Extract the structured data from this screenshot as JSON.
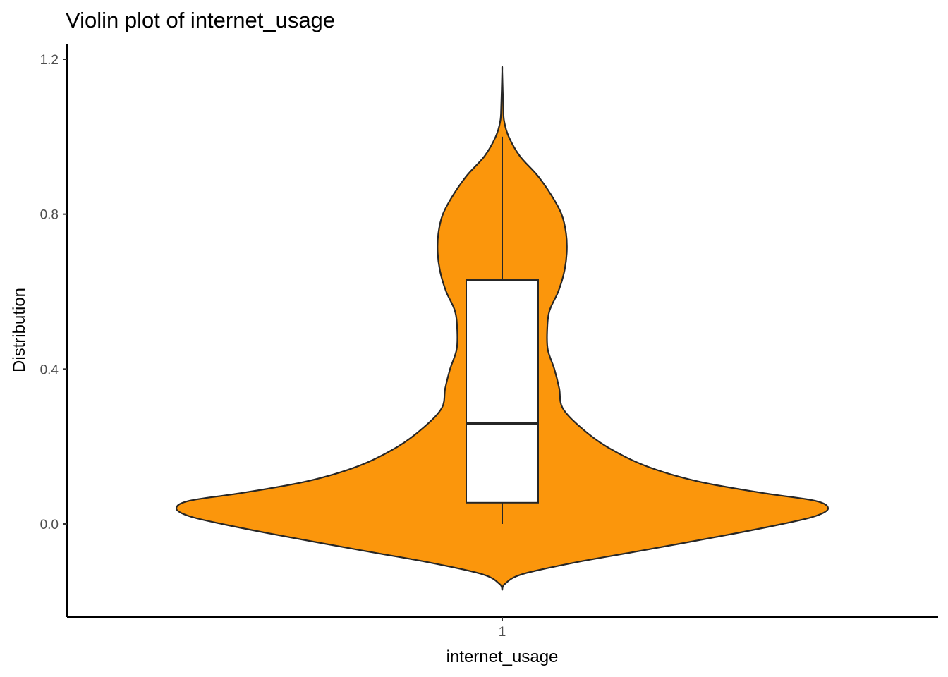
{
  "chart_data": {
    "type": "violin",
    "title": "Violin plot of internet_usage",
    "xlabel": "internet_usage",
    "ylabel": "Distribution",
    "categories": [
      "1"
    ],
    "y_ticks": [
      "0.0",
      "0.4",
      "0.8",
      "1.2"
    ],
    "ylim": [
      -0.24,
      1.24
    ],
    "grid": false,
    "legend": "none",
    "fill_color": "#FB960C",
    "outline_color": "#262626",
    "box_fill": "#ffffff",
    "violin": {
      "y_min": -0.17,
      "y_max": 1.17,
      "profile": [
        [
          -0.17,
          0.0
        ],
        [
          -0.155,
          0.008
        ],
        [
          -0.13,
          0.06
        ],
        [
          -0.1,
          0.22
        ],
        [
          -0.07,
          0.42
        ],
        [
          -0.03,
          0.68
        ],
        [
          0.0,
          0.86
        ],
        [
          0.02,
          0.96
        ],
        [
          0.04,
          1.0
        ],
        [
          0.06,
          0.96
        ],
        [
          0.08,
          0.8
        ],
        [
          0.11,
          0.6
        ],
        [
          0.15,
          0.44
        ],
        [
          0.2,
          0.32
        ],
        [
          0.25,
          0.24
        ],
        [
          0.3,
          0.185
        ],
        [
          0.35,
          0.175
        ],
        [
          0.4,
          0.16
        ],
        [
          0.45,
          0.14
        ],
        [
          0.5,
          0.138
        ],
        [
          0.55,
          0.145
        ],
        [
          0.6,
          0.172
        ],
        [
          0.65,
          0.19
        ],
        [
          0.7,
          0.198
        ],
        [
          0.75,
          0.196
        ],
        [
          0.8,
          0.182
        ],
        [
          0.85,
          0.15
        ],
        [
          0.9,
          0.108
        ],
        [
          0.95,
          0.054
        ],
        [
          1.0,
          0.02
        ],
        [
          1.04,
          0.006
        ],
        [
          1.08,
          0.003
        ],
        [
          1.17,
          0.0
        ]
      ]
    },
    "box": {
      "min": 0.0,
      "q1": 0.055,
      "median": 0.26,
      "q3": 0.63,
      "max": 1.0
    }
  }
}
